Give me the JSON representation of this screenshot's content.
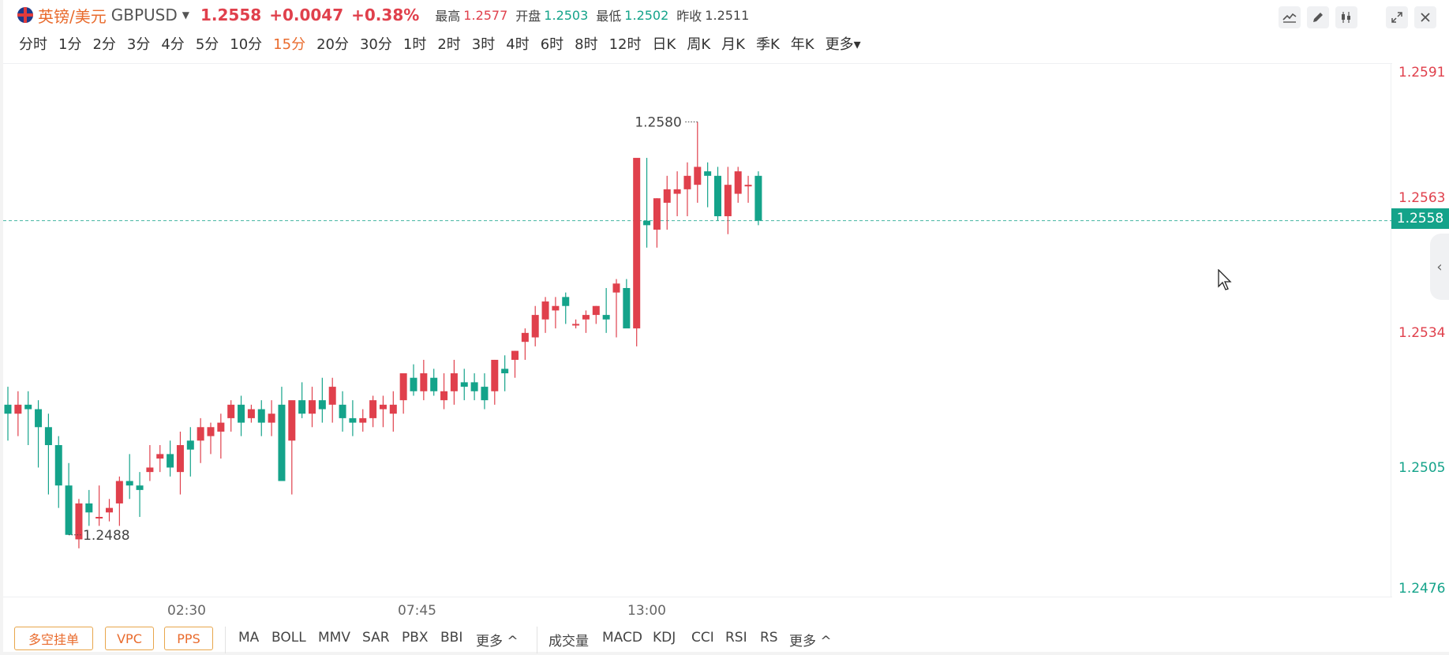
{
  "header": {
    "name": "英镑/美元",
    "symbol": "GBPUSD",
    "price": "1.2558",
    "change": "+0.0047",
    "change_pct": "+0.38%",
    "stats": [
      {
        "label": "最高",
        "value": "1.2577",
        "tone": "up"
      },
      {
        "label": "开盘",
        "value": "1.2503",
        "tone": "down"
      },
      {
        "label": "最低",
        "value": "1.2502",
        "tone": "down"
      },
      {
        "label": "昨收",
        "value": "1.2511",
        "tone": "neutral"
      }
    ]
  },
  "toolbar_icons": [
    "line-tool-icon",
    "pen-icon",
    "candles-icon",
    "expand-icon",
    "close-icon"
  ],
  "intervals": {
    "items": [
      "分时",
      "1分",
      "2分",
      "3分",
      "4分",
      "5分",
      "10分",
      "15分",
      "20分",
      "30分",
      "1时",
      "2时",
      "3时",
      "4时",
      "6时",
      "8时",
      "12时",
      "日K",
      "周K",
      "月K",
      "季K",
      "年K",
      "更多"
    ],
    "active": "15分"
  },
  "chart": {
    "y_ticks": [
      {
        "label": "1.2591",
        "tone": "up"
      },
      {
        "label": "1.2563",
        "tone": "up"
      },
      {
        "label": "1.2534",
        "tone": "up"
      },
      {
        "label": "1.2505",
        "tone": "down"
      },
      {
        "label": "1.2476",
        "tone": "down"
      }
    ],
    "current_price_tag": "1.2558",
    "high_annotation": "1.2580",
    "low_annotation": "1.2488",
    "x_ticks": [
      "02:30",
      "07:45",
      "13:00"
    ],
    "colors": {
      "up": "#e0404c",
      "down": "#14a38a",
      "accent": "#e96b2d"
    }
  },
  "chart_data": {
    "type": "candlestick",
    "ylim": [
      1.2476,
      1.2591
    ],
    "last_price": 1.2558,
    "high_marker": 1.258,
    "low_marker": 1.2488,
    "x_tick_labels": [
      "02:30",
      "07:45",
      "13:00"
    ],
    "y_tick_labels": [
      "1.2591",
      "1.2563",
      "1.2534",
      "1.2505",
      "1.2476"
    ],
    "candles_ohlc": [
      [
        1.2517,
        1.2521,
        1.2509,
        1.2515
      ],
      [
        1.2515,
        1.252,
        1.251,
        1.2517
      ],
      [
        1.2517,
        1.252,
        1.2508,
        1.2516
      ],
      [
        1.2516,
        1.2518,
        1.2503,
        1.2512
      ],
      [
        1.2512,
        1.2515,
        1.2497,
        1.2508
      ],
      [
        1.2508,
        1.251,
        1.2494,
        1.2499
      ],
      [
        1.2499,
        1.2504,
        1.2488,
        1.2488
      ],
      [
        1.2487,
        1.2496,
        1.2485,
        1.2495
      ],
      [
        1.2495,
        1.2498,
        1.249,
        1.2493
      ],
      [
        1.2492,
        1.2499,
        1.249,
        1.2492
      ],
      [
        1.2493,
        1.2496,
        1.2491,
        1.2494
      ],
      [
        1.2495,
        1.2501,
        1.249,
        1.25
      ],
      [
        1.25,
        1.2506,
        1.2496,
        1.2499
      ],
      [
        1.2499,
        1.2502,
        1.2492,
        1.2498
      ],
      [
        1.2502,
        1.2508,
        1.25,
        1.2503
      ],
      [
        1.2505,
        1.2508,
        1.2502,
        1.2506
      ],
      [
        1.2506,
        1.2509,
        1.2501,
        1.2503
      ],
      [
        1.2502,
        1.2511,
        1.2497,
        1.2508
      ],
      [
        1.2509,
        1.2512,
        1.2501,
        1.2507
      ],
      [
        1.2509,
        1.2514,
        1.2504,
        1.2512
      ],
      [
        1.251,
        1.2513,
        1.2506,
        1.2512
      ],
      [
        1.2511,
        1.2515,
        1.2505,
        1.2513
      ],
      [
        1.2514,
        1.2518,
        1.2511,
        1.2517
      ],
      [
        1.2517,
        1.2519,
        1.251,
        1.2513
      ],
      [
        1.2514,
        1.2517,
        1.2513,
        1.2516
      ],
      [
        1.2516,
        1.2518,
        1.251,
        1.2513
      ],
      [
        1.2513,
        1.2518,
        1.251,
        1.2515
      ],
      [
        1.2517,
        1.2521,
        1.2507,
        1.25
      ],
      [
        1.2509,
        1.2512,
        1.2497,
        1.2518
      ],
      [
        1.2518,
        1.2522,
        1.2514,
        1.2515
      ],
      [
        1.2515,
        1.2521,
        1.2512,
        1.2518
      ],
      [
        1.2518,
        1.2523,
        1.2513,
        1.2516
      ],
      [
        1.2517,
        1.2523,
        1.2513,
        1.2521
      ],
      [
        1.2517,
        1.252,
        1.2511,
        1.2514
      ],
      [
        1.2514,
        1.2518,
        1.251,
        1.2513
      ],
      [
        1.2513,
        1.2516,
        1.2511,
        1.2514
      ],
      [
        1.2514,
        1.2519,
        1.2512,
        1.2518
      ],
      [
        1.2516,
        1.2519,
        1.2512,
        1.2517
      ],
      [
        1.2515,
        1.252,
        1.2511,
        1.2517
      ],
      [
        1.2518,
        1.2523,
        1.2515,
        1.2524
      ],
      [
        1.2523,
        1.2526,
        1.2519,
        1.252
      ],
      [
        1.252,
        1.2527,
        1.2518,
        1.2524
      ],
      [
        1.2523,
        1.2525,
        1.2519,
        1.252
      ],
      [
        1.2518,
        1.2524,
        1.2516,
        1.252
      ],
      [
        1.252,
        1.2527,
        1.2517,
        1.2524
      ],
      [
        1.2522,
        1.2525,
        1.2518,
        1.2521
      ],
      [
        1.2522,
        1.2524,
        1.2518,
        1.252
      ],
      [
        1.2521,
        1.2524,
        1.2516,
        1.2518
      ],
      [
        1.252,
        1.2527,
        1.2517,
        1.2527
      ],
      [
        1.2525,
        1.2528,
        1.252,
        1.2524
      ],
      [
        1.2527,
        1.2529,
        1.2523,
        1.2529
      ],
      [
        1.2531,
        1.2534,
        1.2527,
        1.2533
      ],
      [
        1.2532,
        1.2539,
        1.253,
        1.2537
      ],
      [
        1.2536,
        1.2541,
        1.2533,
        1.254
      ],
      [
        1.2538,
        1.2541,
        1.2534,
        1.2539
      ],
      [
        1.2541,
        1.2542,
        1.2535,
        1.2539
      ],
      [
        1.2535,
        1.2536,
        1.2534,
        1.2535
      ],
      [
        1.2536,
        1.2538,
        1.2533,
        1.2537
      ],
      [
        1.2537,
        1.2539,
        1.2535,
        1.2539
      ],
      [
        1.2537,
        1.2543,
        1.2533,
        1.2536
      ],
      [
        1.2542,
        1.2545,
        1.2532,
        1.2544
      ],
      [
        1.2543,
        1.2545,
        1.2535,
        1.2534
      ],
      [
        1.2534,
        1.2546,
        1.253,
        1.2572
      ],
      [
        1.2558,
        1.2572,
        1.2552,
        1.2557
      ],
      [
        1.2556,
        1.2563,
        1.2552,
        1.2563
      ],
      [
        1.2562,
        1.2568,
        1.2556,
        1.2565
      ],
      [
        1.2564,
        1.2569,
        1.2559,
        1.2565
      ],
      [
        1.2565,
        1.2571,
        1.2559,
        1.2568
      ],
      [
        1.2566,
        1.258,
        1.2562,
        1.257
      ],
      [
        1.2569,
        1.2571,
        1.2561,
        1.2568
      ],
      [
        1.2568,
        1.257,
        1.2558,
        1.2559
      ],
      [
        1.2559,
        1.257,
        1.2555,
        1.2566
      ],
      [
        1.2564,
        1.257,
        1.2562,
        1.2569
      ],
      [
        1.2566,
        1.2568,
        1.2562,
        1.2566
      ],
      [
        1.2568,
        1.2569,
        1.2557,
        1.2558
      ]
    ]
  },
  "order_buttons": [
    "多空挂单",
    "VPC",
    "PPS"
  ],
  "main_indicators": [
    "MA",
    "BOLL",
    "MMV",
    "SAR",
    "PBX",
    "BBI",
    "更多 ^"
  ],
  "sub_indicators": [
    "成交量",
    "MACD",
    "KDJ",
    "CCI",
    "RSI",
    "RS",
    "更多 ^"
  ]
}
